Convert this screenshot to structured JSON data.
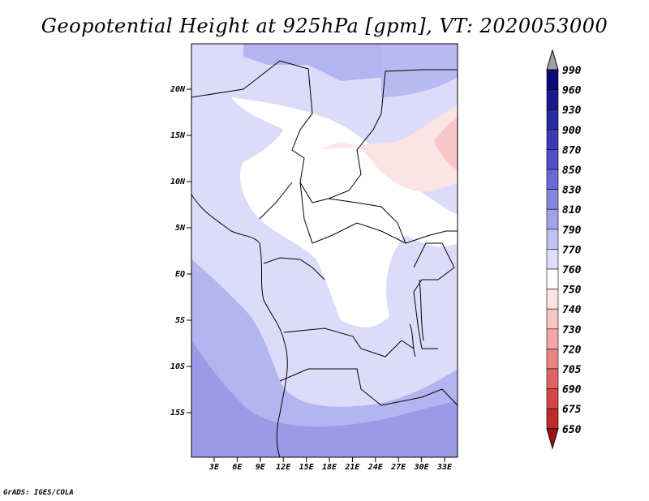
{
  "title": "Geopotential Height at 925hPa [gpm], VT: 2020053000",
  "credit": "GrADS: IGES/COLA",
  "map": {
    "lat_ticks": [
      "20N",
      "15N",
      "10N",
      "5N",
      "EQ",
      "5S",
      "10S",
      "15S"
    ],
    "lon_ticks": [
      "3E",
      "6E",
      "9E",
      "12E",
      "15E",
      "18E",
      "21E",
      "24E",
      "27E",
      "30E",
      "33E"
    ]
  },
  "colorbar": {
    "labels": [
      "990",
      "960",
      "930",
      "900",
      "870",
      "850",
      "830",
      "810",
      "790",
      "770",
      "760",
      "750",
      "740",
      "730",
      "720",
      "705",
      "690",
      "675",
      "650"
    ],
    "colors": {
      "over": "#a0a0a0",
      "c990": "#0a0a78",
      "c960": "#1a1a8c",
      "c930": "#2a2aa0",
      "c900": "#3a3ab4",
      "c870": "#5050c8",
      "c850": "#6a6ad6",
      "c830": "#8585e0",
      "c810": "#a2a2ea",
      "c790": "#c0c0f2",
      "c770": "#dedefa",
      "c760": "#ffffff",
      "c750": "#fde4e4",
      "c740": "#f8c6c6",
      "c730": "#f2a6a6",
      "c720": "#ea8484",
      "c705": "#e06464",
      "c690": "#d24646",
      "c675": "#c02a2a",
      "c650": "#a01414"
    }
  }
}
